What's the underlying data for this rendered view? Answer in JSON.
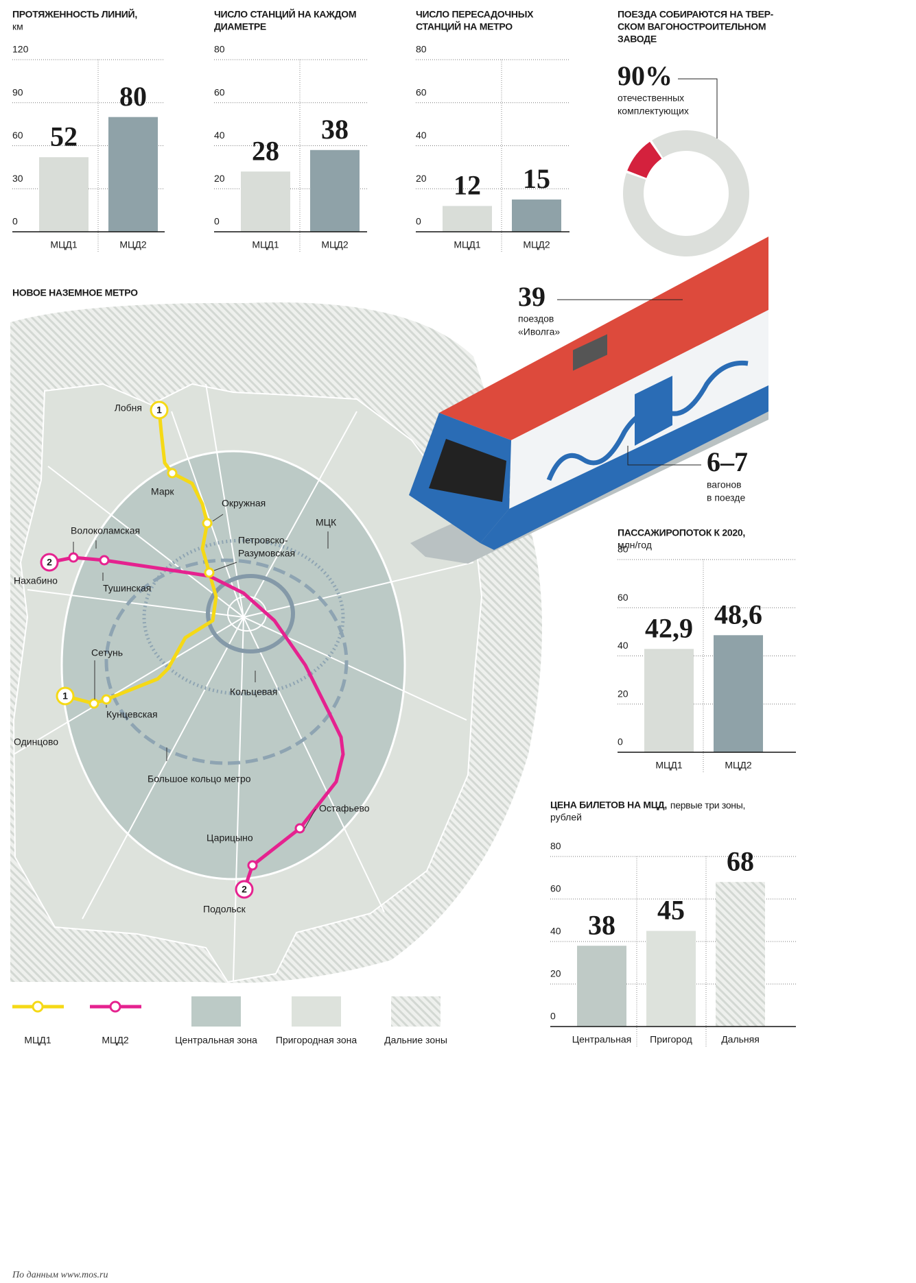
{
  "chart_data": [
    {
      "type": "bar",
      "title": [
        "ПРОТЯЖЕННОСТЬ ЛИНИЙ,"
      ],
      "subtitle": "км",
      "categories": [
        "МЦД1",
        "МЦД2"
      ],
      "values": [
        52,
        80
      ],
      "colors": [
        "#d9ddd8",
        "#8fa2a8"
      ],
      "ylim": [
        0,
        120
      ],
      "yticks": [
        0,
        30,
        60,
        90,
        120
      ],
      "grid": true
    },
    {
      "type": "bar",
      "title": [
        "ЧИСЛО СТАНЦИЙ НА КАЖДОМ",
        "ДИАМЕТРЕ"
      ],
      "categories": [
        "МЦД1",
        "МЦД2"
      ],
      "values": [
        28,
        38
      ],
      "colors": [
        "#d9ddd8",
        "#8fa2a8"
      ],
      "ylim": [
        0,
        80
      ],
      "yticks": [
        0,
        20,
        40,
        60,
        80
      ],
      "grid": true
    },
    {
      "type": "bar",
      "title": [
        "ЧИСЛО ПЕРЕСАДОЧНЫХ",
        "СТАНЦИЙ НА МЕТРО"
      ],
      "categories": [
        "МЦД1",
        "МЦД2"
      ],
      "values": [
        12,
        15
      ],
      "colors": [
        "#d9ddd8",
        "#8fa2a8"
      ],
      "ylim": [
        0,
        80
      ],
      "yticks": [
        0,
        20,
        40,
        60,
        80
      ],
      "grid": true
    },
    {
      "type": "pie",
      "title": [
        "ПОЕЗДА СОБИРАЮТСЯ НА ТВЕР-",
        "СКОМ ВАГОНОСТРОИТЕЛЬНОМ",
        "ЗАВОДЕ"
      ],
      "values": [
        90,
        10
      ],
      "value_labels": [
        "90%",
        null
      ],
      "annotation": [
        "отечественных",
        "комплектующих"
      ],
      "colors": [
        "#dcdfdb",
        "#d4213d"
      ]
    },
    {
      "type": "bar",
      "title": [
        "ПАССАЖИРОПОТОК К 2020,"
      ],
      "subtitle": "млн/год",
      "categories": [
        "МЦД1",
        "МЦД2"
      ],
      "values": [
        42.9,
        48.6
      ],
      "value_labels": [
        "42,9",
        "48,6"
      ],
      "colors": [
        "#d9ddd8",
        "#8fa2a8"
      ],
      "ylim": [
        0,
        80
      ],
      "yticks": [
        0,
        20,
        40,
        60,
        80
      ],
      "grid": true
    },
    {
      "type": "bar",
      "title": [
        "ЦЕНА БИЛЕТОВ НА МЦД,"
      ],
      "title_note": "первые три зоны,",
      "subtitle": "рублей",
      "categories": [
        "Центральная",
        "Пригород",
        "Дальняя"
      ],
      "values": [
        38,
        45,
        68
      ],
      "colors": [
        "#bfcac6",
        "#dde2dc",
        "#e4e7e3"
      ],
      "hatched": [
        false,
        false,
        true
      ],
      "ylim": [
        0,
        80
      ],
      "yticks": [
        0,
        20,
        40,
        60,
        80
      ],
      "grid": true
    }
  ],
  "train": {
    "trains": {
      "value": "39",
      "text": [
        "поездов",
        "«Иволга»"
      ]
    },
    "cars": {
      "value": "6–7",
      "text": [
        "вагонов",
        "в поезде"
      ]
    }
  },
  "map": {
    "title": "НОВОЕ НАЗЕМНОЕ МЕТРО",
    "labels": [
      "Лобня",
      "Марк",
      "Окружная",
      "МЦК",
      "Волоколамская",
      "Петровско-",
      "Разумовская",
      "Нахабино",
      "Тушинская",
      "Сетунь",
      "Кольцевая",
      "Одинцово",
      "Кунцевская",
      "Большое кольцо метро",
      "Остафьево",
      "Царицыно",
      "Подольск"
    ],
    "badges": [
      "1",
      "1",
      "2",
      "2"
    ],
    "legend": [
      {
        "label": "МЦД1",
        "color": "#f5d916"
      },
      {
        "label": "МЦД2",
        "color": "#e5228f"
      },
      {
        "label": "Центральная зона",
        "color": "#bccac6"
      },
      {
        "label": "Пригородная зона",
        "color": "#dde2dc"
      },
      {
        "label": "Дальние зоны",
        "color": "#e4e7e3"
      }
    ]
  },
  "source": "По данным www.mos.ru"
}
